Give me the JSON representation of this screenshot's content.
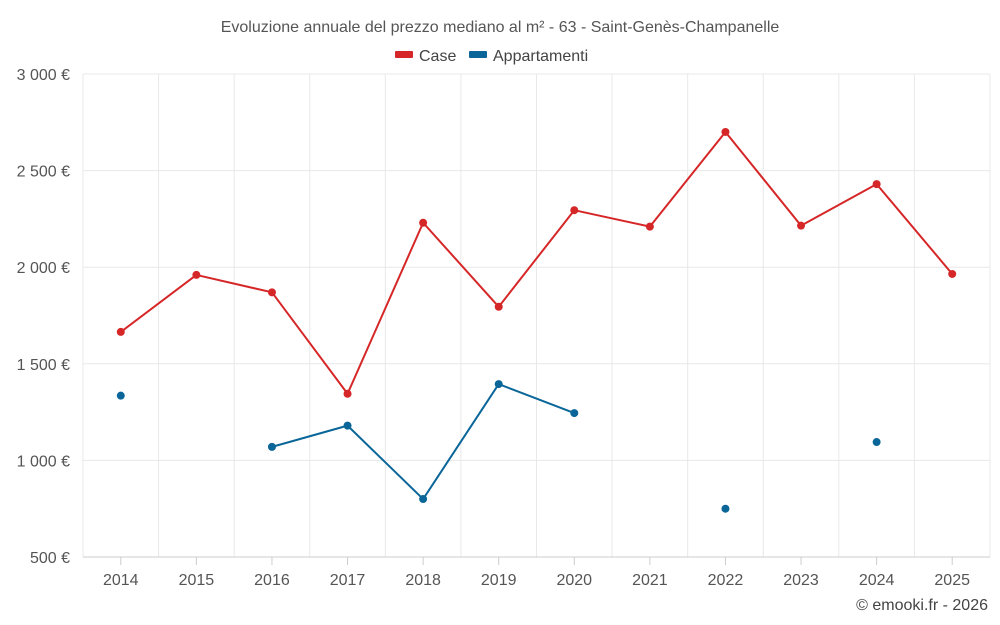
{
  "chart_data": {
    "type": "line",
    "title": "Evoluzione annuale del prezzo mediano al m² - 63 - Saint-Genès-Champanelle",
    "categories": [
      "2014",
      "2015",
      "2016",
      "2017",
      "2018",
      "2019",
      "2020",
      "2021",
      "2022",
      "2023",
      "2024",
      "2025"
    ],
    "ylim": [
      500,
      3000
    ],
    "yticks": [
      500,
      1000,
      1500,
      2000,
      2500,
      3000
    ],
    "ytick_labels": [
      "500 €",
      "1 000 €",
      "1 500 €",
      "2 000 €",
      "2 500 €",
      "3 000 €"
    ],
    "legend_position": "top-center",
    "grid": true,
    "series": [
      {
        "name": "Case",
        "color": "#d62728",
        "values": [
          1665,
          1960,
          1870,
          1345,
          2230,
          1795,
          2295,
          2210,
          2700,
          2215,
          2430,
          1965
        ]
      },
      {
        "name": "Appartamenti",
        "color": "#0a6699",
        "values": [
          1335,
          null,
          1070,
          1180,
          800,
          1395,
          1245,
          null,
          750,
          null,
          1095,
          null
        ]
      }
    ]
  },
  "credit": "© emooki.fr - 2026"
}
